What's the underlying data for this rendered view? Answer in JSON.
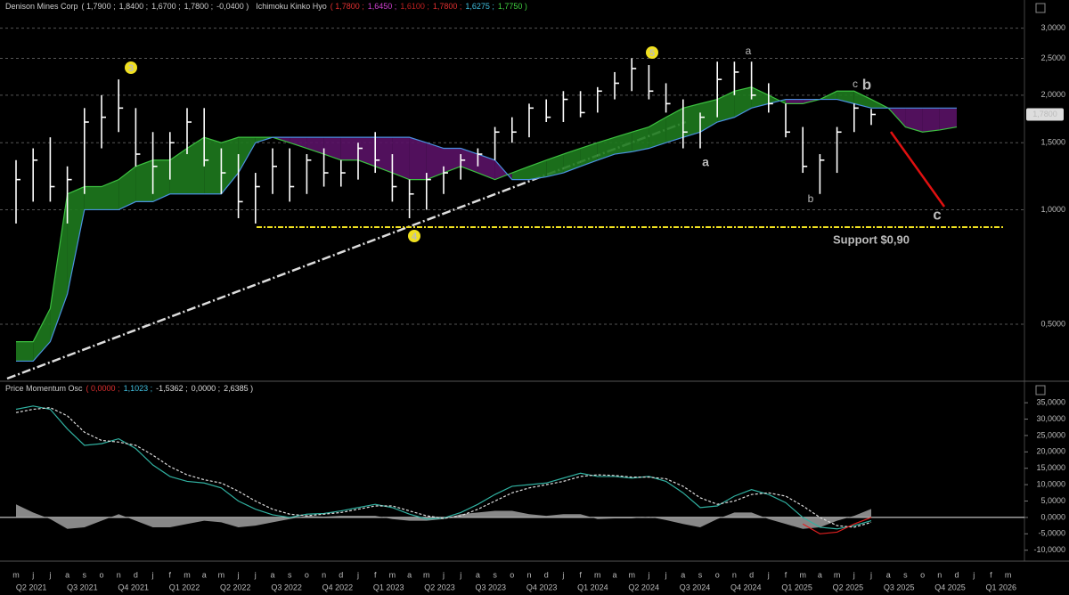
{
  "chart_data": [
    {
      "type": "ohlc",
      "header": {
        "name": "Denison Mines Corp",
        "values": [
          "( 1,7900 ;",
          "1,8400 ;",
          "1,6700 ;",
          "1,7800 ;",
          "-0,0400 )"
        ]
      },
      "indicator": {
        "name": "Ichimoku Kinko Hyo",
        "values": [
          "( 1,7800 ;",
          "1,6450 ;",
          "1,6100 ;",
          "1,7800 ;",
          "1,6275 ;",
          "1,7750 )"
        ],
        "colors": [
          "#e03030",
          "#d040d0",
          "#c02020",
          "#e03030",
          "#40c0e0",
          "#40d040"
        ]
      },
      "log_scale": true,
      "grid": true,
      "ylim": [
        0.36,
        3.16
      ],
      "yticks": [
        {
          "value": 0.5,
          "label": "0,5000"
        },
        {
          "value": 1.0,
          "label": "1,0000"
        },
        {
          "value": 1.5,
          "label": "1,5000"
        },
        {
          "value": 2.0,
          "label": "2,0000"
        },
        {
          "value": 2.5,
          "label": "2,5000"
        },
        {
          "value": 3.0,
          "label": "3,0000"
        }
      ],
      "color": "#ffffff",
      "high": [
        1.35,
        1.45,
        1.55,
        1.3,
        1.85,
        2.0,
        2.2,
        1.85,
        1.6,
        1.6,
        1.85,
        1.85,
        1.45,
        1.4,
        1.25,
        1.45,
        1.45,
        1.4,
        1.45,
        1.35,
        1.5,
        1.6,
        1.4,
        1.2,
        1.25,
        1.3,
        1.4,
        1.45,
        1.65,
        1.75,
        1.9,
        1.95,
        2.05,
        2.05,
        2.1,
        2.3,
        2.5,
        2.4,
        2.15,
        1.95,
        1.8,
        2.45,
        2.45,
        2.45,
        2.15,
        1.9,
        1.65,
        1.4,
        1.65,
        1.9,
        1.84,
        null,
        null,
        null,
        null,
        null,
        null,
        null,
        null
      ],
      "low": [
        0.92,
        1.05,
        1.05,
        0.92,
        1.1,
        1.45,
        1.6,
        1.3,
        1.1,
        1.2,
        1.4,
        1.3,
        1.1,
        0.95,
        0.92,
        1.1,
        1.05,
        1.1,
        1.15,
        1.15,
        1.2,
        1.25,
        1.05,
        0.95,
        1.0,
        1.1,
        1.2,
        1.3,
        1.35,
        1.5,
        1.55,
        1.7,
        1.7,
        1.75,
        1.8,
        1.95,
        2.05,
        1.95,
        1.8,
        1.45,
        1.45,
        1.75,
        2.0,
        1.95,
        1.8,
        1.55,
        1.25,
        1.1,
        1.25,
        1.6,
        1.67,
        null,
        null,
        null,
        null,
        null,
        null,
        null,
        null
      ],
      "close": [
        1.2,
        1.35,
        1.15,
        1.2,
        1.7,
        1.75,
        1.85,
        1.4,
        1.3,
        1.5,
        1.7,
        1.35,
        1.25,
        1.05,
        1.15,
        1.3,
        1.15,
        1.35,
        1.25,
        1.25,
        1.45,
        1.35,
        1.15,
        1.1,
        1.2,
        1.25,
        1.35,
        1.4,
        1.6,
        1.6,
        1.85,
        1.75,
        1.95,
        1.8,
        2.05,
        2.15,
        2.35,
        2.05,
        1.9,
        1.6,
        1.75,
        2.2,
        2.3,
        2.0,
        1.9,
        1.6,
        1.3,
        1.35,
        1.6,
        1.85,
        1.78,
        null,
        null,
        null,
        null,
        null,
        null,
        null,
        null
      ],
      "cloud": {
        "span_a": [
          0.45,
          0.45,
          0.55,
          1.1,
          1.15,
          1.15,
          1.2,
          1.3,
          1.35,
          1.35,
          1.45,
          1.55,
          1.5,
          1.55,
          1.55,
          1.55,
          1.5,
          1.45,
          1.4,
          1.35,
          1.35,
          1.3,
          1.25,
          1.2,
          1.2,
          1.25,
          1.3,
          1.25,
          1.2,
          1.25,
          1.3,
          1.35,
          1.4,
          1.45,
          1.5,
          1.55,
          1.6,
          1.65,
          1.75,
          1.85,
          1.9,
          1.95,
          2.05,
          2.1,
          2.0,
          1.9,
          1.9,
          1.95,
          2.05,
          2.05,
          1.95,
          1.85,
          1.65,
          1.6,
          1.62,
          1.65,
          null,
          null,
          null
        ],
        "span_b": [
          0.4,
          0.4,
          0.45,
          0.6,
          1.0,
          1.0,
          1.0,
          1.05,
          1.05,
          1.1,
          1.1,
          1.1,
          1.1,
          1.25,
          1.5,
          1.55,
          1.55,
          1.55,
          1.55,
          1.55,
          1.55,
          1.55,
          1.55,
          1.55,
          1.5,
          1.45,
          1.45,
          1.4,
          1.35,
          1.2,
          1.2,
          1.22,
          1.25,
          1.3,
          1.35,
          1.4,
          1.42,
          1.45,
          1.5,
          1.55,
          1.6,
          1.7,
          1.75,
          1.85,
          1.9,
          1.95,
          1.95,
          1.95,
          1.95,
          1.9,
          1.85,
          1.85,
          1.85,
          1.85,
          1.85,
          1.85,
          null,
          null,
          null
        ],
        "up_color": "#1e7a1e",
        "down_color": "#5a1266",
        "a_color": "#3cc040",
        "b_color": "#4a90e0"
      },
      "last_price": {
        "value": 1.78,
        "label": "1,7800"
      },
      "support": {
        "value": 0.9,
        "label": "Support $0,90",
        "color": "#f0e020"
      },
      "annotations": [
        {
          "text": "3",
          "color": "#f0e020"
        },
        {
          "text": "4",
          "color": "#f0e020"
        },
        {
          "text": "5",
          "color": "#f0e020"
        },
        {
          "text": "a",
          "color": "#f07030"
        },
        {
          "text": "a",
          "color": "#f0e020"
        },
        {
          "text": "b",
          "color": "#f07030"
        },
        {
          "text": "c",
          "color": "#f07030"
        },
        {
          "text": "b",
          "color": "#f0e020"
        },
        {
          "text": "c",
          "color": "#f0e020"
        }
      ]
    },
    {
      "type": "line",
      "header": {
        "name": "Price Momentum Osc",
        "values": [
          "( 0,0000 ;",
          "1,1023 ;",
          "-1,5362 ;",
          "0,0000 ;",
          "2,6385 )"
        ],
        "colors": [
          "#e03030",
          "#40c0e0",
          "#dddddd",
          "#dddddd",
          "#dddddd"
        ]
      },
      "ylim": [
        -12800,
        38300
      ],
      "yticks": [
        {
          "value": 35000,
          "label": "35,0000"
        },
        {
          "value": 30000,
          "label": "30,0000"
        },
        {
          "value": 25000,
          "label": "25,0000"
        },
        {
          "value": 20000,
          "label": "20,0000"
        },
        {
          "value": 15000,
          "label": "15,0000"
        },
        {
          "value": 10000,
          "label": "10,0000"
        },
        {
          "value": 5000,
          "label": "5,0000"
        },
        {
          "value": 0,
          "label": "0,0000"
        },
        {
          "value": -5000,
          "label": "-5,0000"
        },
        {
          "value": -10000,
          "label": "-10,0000"
        }
      ],
      "categories": [
        "m",
        "j",
        "j",
        "a",
        "s",
        "o",
        "n",
        "d",
        "j",
        "f",
        "m",
        "a",
        "m",
        "j",
        "j",
        "a",
        "s",
        "o",
        "n",
        "d",
        "j",
        "f",
        "m",
        "a",
        "m",
        "j",
        "j",
        "a",
        "s",
        "o",
        "n",
        "d",
        "j",
        "f",
        "m",
        "a",
        "m",
        "j",
        "j",
        "a",
        "s",
        "o",
        "n",
        "d",
        "j",
        "f",
        "m",
        "a",
        "m",
        "j",
        "j",
        "a",
        "s",
        "o",
        "n",
        "d",
        "j",
        "f",
        "m"
      ],
      "quarters": [
        "Q2 2021",
        "Q3 2021",
        "Q4 2021",
        "Q1 2022",
        "Q2 2022",
        "Q3 2022",
        "Q4 2022",
        "Q1 2023",
        "Q2 2023",
        "Q3 2023",
        "Q4 2023",
        "Q1 2024",
        "Q2 2024",
        "Q3 2024",
        "Q4 2024",
        "Q1 2025",
        "Q2 2025",
        "Q3 2025",
        "Q4 2025",
        "Q1 2026"
      ],
      "histogram": {
        "color": "#a0a0a0",
        "values": [
          4000,
          1500,
          -500,
          -3500,
          -3000,
          -1000,
          1000,
          -1000,
          -3000,
          -3000,
          -2000,
          -1000,
          -1500,
          -3000,
          -2500,
          -1500,
          -500,
          500,
          200,
          500,
          500,
          500,
          -500,
          -1000,
          -1000,
          -500,
          1000,
          1500,
          2000,
          2000,
          1000,
          500,
          1000,
          1000,
          -500,
          -300,
          -300,
          200,
          -800,
          -2000,
          -3000,
          -500,
          1500,
          1500,
          -500,
          -2000,
          -3500,
          -3000,
          -1000,
          500,
          2600,
          null,
          null,
          null,
          null,
          null,
          null,
          null,
          null
        ]
      },
      "series": [
        {
          "color": "#30b0a0",
          "values": [
            33000,
            34000,
            33000,
            27000,
            22000,
            22500,
            24000,
            21000,
            16000,
            12500,
            11000,
            10500,
            9000,
            5000,
            2500,
            800,
            0,
            1000,
            1200,
            2000,
            3000,
            4000,
            3000,
            1000,
            -500,
            -200,
            1500,
            4000,
            7000,
            9500,
            10000,
            10500,
            12000,
            13500,
            12500,
            12500,
            12000,
            12500,
            11000,
            7500,
            3000,
            3500,
            6500,
            8500,
            7000,
            4500,
            0,
            -3000,
            -3500,
            -2500,
            -1000,
            null,
            null,
            null,
            null,
            null,
            null,
            null,
            null
          ]
        },
        {
          "color": "#dddddd",
          "dashed": true,
          "values": [
            32000,
            33000,
            33500,
            31000,
            26000,
            23500,
            23000,
            22000,
            19000,
            15500,
            13000,
            11500,
            10500,
            8000,
            5000,
            2500,
            1000,
            500,
            1000,
            1500,
            2500,
            3500,
            3500,
            2000,
            500,
            -300,
            500,
            2500,
            5000,
            7500,
            9000,
            10000,
            11000,
            12500,
            13000,
            12800,
            12300,
            12300,
            11800,
            9500,
            6000,
            4000,
            5000,
            7000,
            7500,
            6500,
            3500,
            0,
            -2500,
            -3000,
            -1500,
            null,
            null,
            null,
            null,
            null,
            null,
            null,
            null
          ]
        },
        {
          "color": "#e02020",
          "values": [
            null,
            null,
            null,
            null,
            null,
            null,
            null,
            null,
            null,
            null,
            null,
            null,
            null,
            null,
            null,
            null,
            null,
            null,
            null,
            null,
            null,
            null,
            null,
            null,
            null,
            null,
            null,
            null,
            null,
            null,
            null,
            null,
            null,
            null,
            null,
            null,
            null,
            null,
            null,
            null,
            null,
            null,
            null,
            null,
            null,
            null,
            -2000,
            -5000,
            -4500,
            -2000,
            0,
            null,
            null,
            null,
            null,
            null,
            null,
            null,
            null
          ]
        }
      ]
    }
  ]
}
